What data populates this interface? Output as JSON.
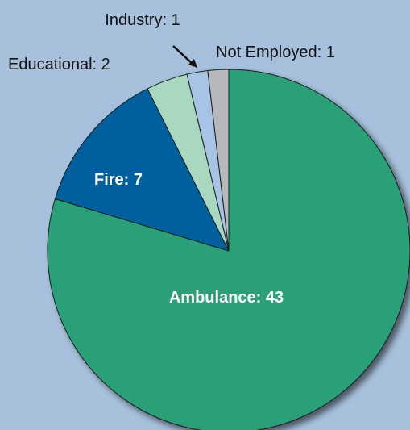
{
  "chart_data": {
    "type": "pie",
    "title": "",
    "slices": [
      {
        "label": "Ambulance",
        "value": 43,
        "text": "Ambulance: 43",
        "color": "#2aa078"
      },
      {
        "label": "Fire",
        "value": 7,
        "text": "Fire: 7",
        "color": "#05609e"
      },
      {
        "label": "Educational",
        "value": 2,
        "text": "Educational: 2",
        "color": "#a8d8c0"
      },
      {
        "label": "Industry",
        "value": 1,
        "text": "Industry: 1",
        "color": "#a7c3e6"
      },
      {
        "label": "Not Employed",
        "value": 1,
        "text": "Not Employed: 1",
        "color": "#b6b8bc"
      }
    ],
    "start": "12 o'clock",
    "direction": "clockwise",
    "background": "#a7c0dc"
  }
}
